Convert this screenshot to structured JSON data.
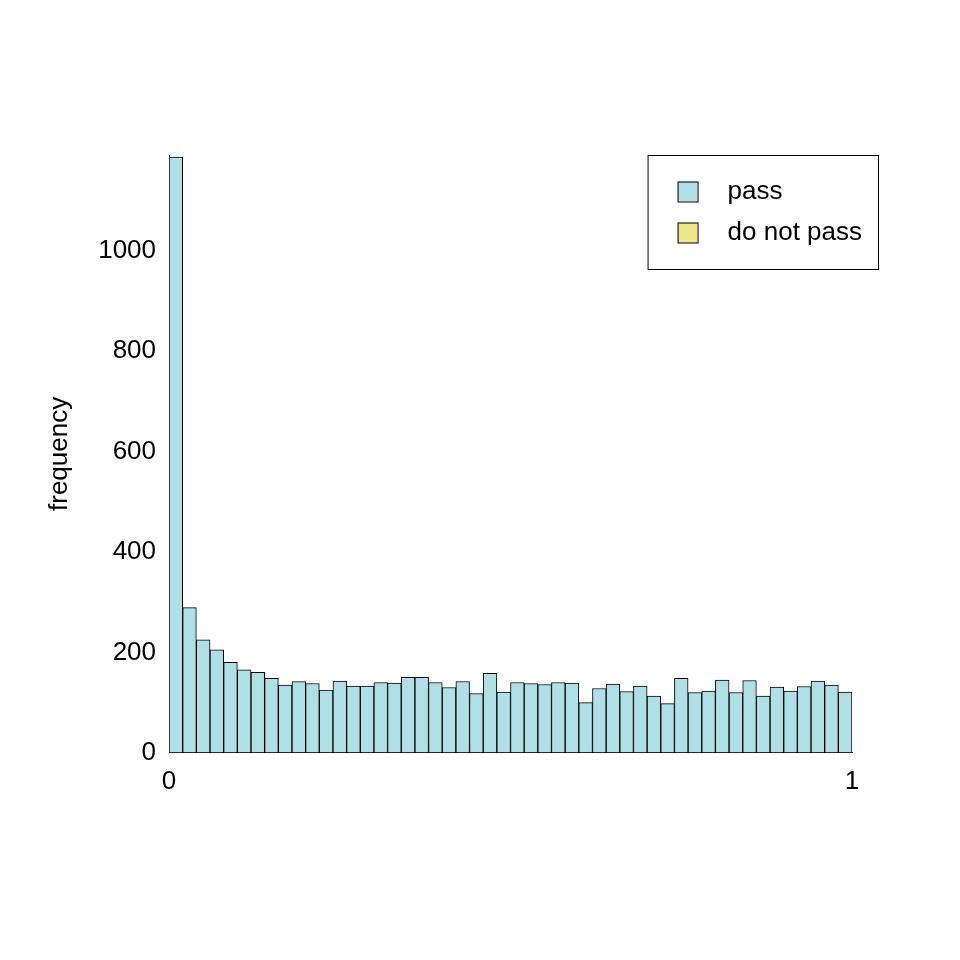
{
  "chart_data": {
    "type": "histogram",
    "ylabel": "frequency",
    "bins": [
      0,
      0.02,
      0.04,
      0.06,
      0.08,
      0.1,
      0.12,
      0.14,
      0.16,
      0.18,
      0.2,
      0.22,
      0.24,
      0.26,
      0.28,
      0.3,
      0.32,
      0.34,
      0.36,
      0.38,
      0.4,
      0.42,
      0.44,
      0.46,
      0.48,
      0.5,
      0.52,
      0.54,
      0.56,
      0.58,
      0.6,
      0.62,
      0.64,
      0.66,
      0.68,
      0.7,
      0.72,
      0.74,
      0.76,
      0.78,
      0.8,
      0.82,
      0.84,
      0.86,
      0.88,
      0.9,
      0.92,
      0.94,
      0.96,
      0.98,
      1
    ],
    "series": [
      {
        "name": "pass",
        "color": "#b0e0e6",
        "values": [
          1186,
          289,
          225,
          205,
          180,
          165,
          160,
          148,
          135,
          142,
          138,
          125,
          143,
          133,
          133,
          140,
          139,
          150,
          150,
          140,
          130,
          142,
          118,
          158,
          121,
          140,
          138,
          136,
          140,
          139,
          100,
          128,
          137,
          122,
          133,
          113,
          98,
          148,
          120,
          123,
          145,
          120,
          144,
          113,
          131,
          123,
          132,
          143,
          135,
          121
        ]
      },
      {
        "name": "do not pass",
        "color": "#f0e68c",
        "values": [
          0,
          0,
          0,
          0,
          0,
          0,
          0,
          0,
          0,
          0,
          0,
          0,
          0,
          0,
          0,
          0,
          0,
          0,
          0,
          0,
          0,
          0,
          0,
          0,
          0,
          0,
          0,
          0,
          0,
          0,
          0,
          0,
          0,
          0,
          0,
          0,
          0,
          0,
          0,
          0,
          0,
          0,
          0,
          0,
          0,
          0,
          0,
          0,
          0,
          0
        ]
      }
    ],
    "xlim": [
      0,
      1
    ],
    "xticks": [
      0,
      1
    ],
    "ylim": [
      0,
      1190
    ],
    "yticks": [
      0,
      200,
      400,
      600,
      800,
      1000
    ],
    "stacked": true,
    "grid": false,
    "legend": "topright"
  }
}
